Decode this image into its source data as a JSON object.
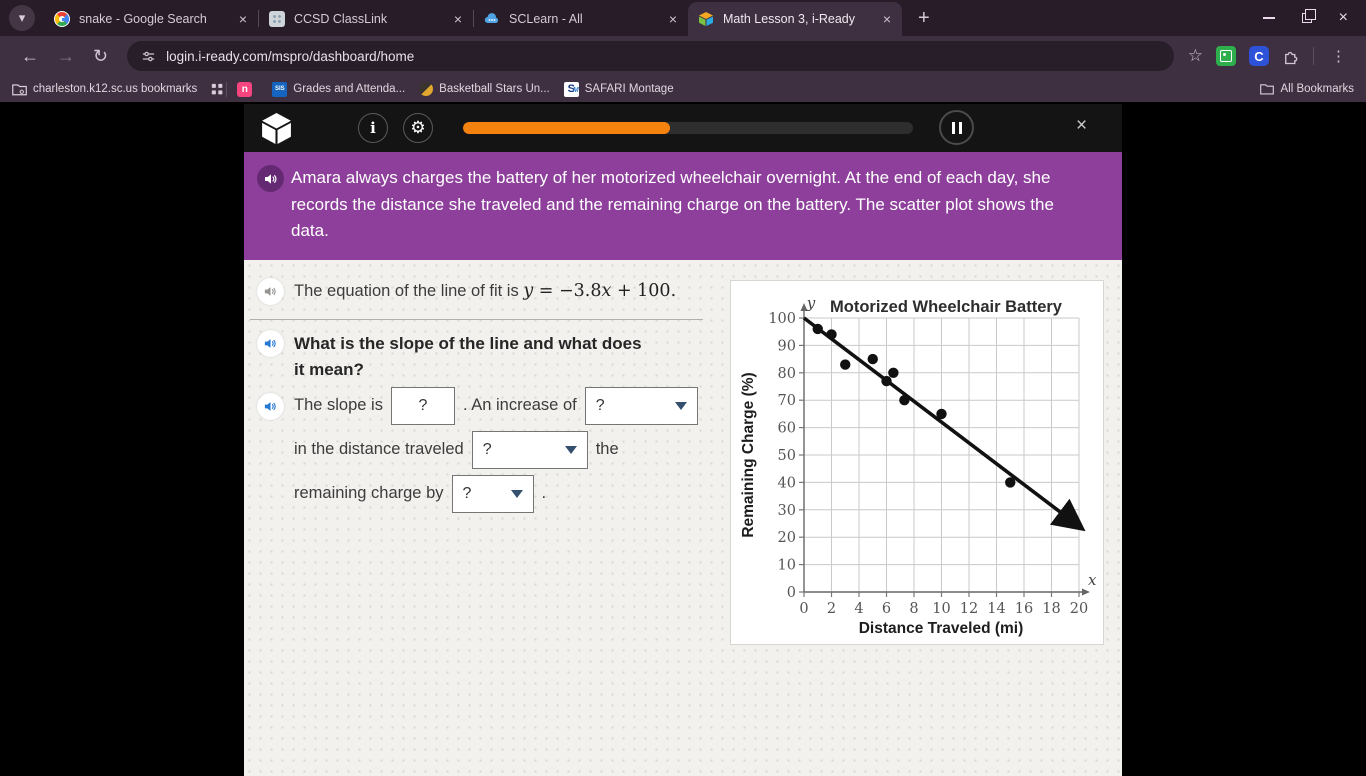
{
  "icons": {
    "close": "×",
    "plus": "+",
    "chevron_down": "▾",
    "back": "←",
    "forward": "→",
    "reload": "↻",
    "star": "☆",
    "kebab": "⋮",
    "info": "i",
    "gear": "⚙",
    "extension_c": "C",
    "bookmark_n": "n",
    "bookmark_sis": "SIS",
    "bookmark_safari": "S",
    "bookmark_safari_m": "M"
  },
  "browser": {
    "tabs": [
      {
        "title": "snake - Google Search",
        "active": false
      },
      {
        "title": "CCSD ClassLink",
        "active": false
      },
      {
        "title": "SCLearn - All",
        "active": false
      },
      {
        "title": "Math Lesson 3, i-Ready",
        "active": true
      }
    ],
    "url": "login.i-ready.com/mspro/dashboard/home",
    "bookmarks_bar": {
      "managed_label": "charleston.k12.sc.us bookmarks",
      "items": [
        {
          "icon": "n-icon",
          "label": ""
        },
        {
          "icon": "sis-icon",
          "label": "Grades and Attenda..."
        },
        {
          "icon": "basketball-icon",
          "label": "Basketball Stars Un..."
        },
        {
          "icon": "safari-montage-icon",
          "label": "SAFARI Montage"
        }
      ],
      "all_bookmarks_label": "All Bookmarks"
    }
  },
  "lesson": {
    "header": {
      "progress_percent": 46
    },
    "banner": {
      "text": "Amara always charges the battery of her motorized wheelchair overnight. At the end of each day, she records the distance she traveled and the remaining charge on the battery. The scatter plot shows the data."
    },
    "equation_row": {
      "prefix": "The equation of the line of fit is ",
      "math_y": "y",
      "math_mid": " = −3.8",
      "math_x": "x",
      "math_end": " + 100."
    },
    "question": "What is the slope of the line and what does it mean?",
    "fill_in": {
      "part1": "The slope is",
      "slope_value": "?",
      "part2": ". An increase of",
      "dropdown1_value": "?",
      "part3": "in the distance traveled",
      "dropdown2_value": "?",
      "part4": "the",
      "part5": "remaining charge by",
      "dropdown3_value": "?",
      "part6": "."
    }
  },
  "chart_data": {
    "type": "scatter",
    "title": "Motorized Wheelchair Battery",
    "xlabel": "Distance Traveled (mi)",
    "ylabel": "Remaining Charge (%)",
    "x_axis_letter": "x",
    "y_axis_letter": "y",
    "xlim": [
      0,
      20
    ],
    "ylim": [
      0,
      100
    ],
    "x_ticks": [
      0,
      2,
      4,
      6,
      8,
      10,
      12,
      14,
      16,
      18,
      20
    ],
    "y_ticks": [
      0,
      10,
      20,
      30,
      40,
      50,
      60,
      70,
      80,
      90,
      100
    ],
    "grid": true,
    "points": [
      [
        1,
        96
      ],
      [
        2,
        94
      ],
      [
        3,
        83
      ],
      [
        5,
        85
      ],
      [
        6,
        77
      ],
      [
        6.5,
        80
      ],
      [
        7.3,
        70
      ],
      [
        10,
        65
      ],
      [
        15,
        40
      ]
    ],
    "fit_line": {
      "label": "y = -3.8x + 100",
      "slope": -3.8,
      "intercept": 100,
      "x_start": 0,
      "x_end": 19.85
    }
  },
  "colors": {
    "accent_orange": "#f5820f",
    "banner_purple": "#8d3f9b",
    "speaker_blue": "#2577d4",
    "chrome_dark": "#271c28",
    "chrome_mid": "#3e3040"
  }
}
